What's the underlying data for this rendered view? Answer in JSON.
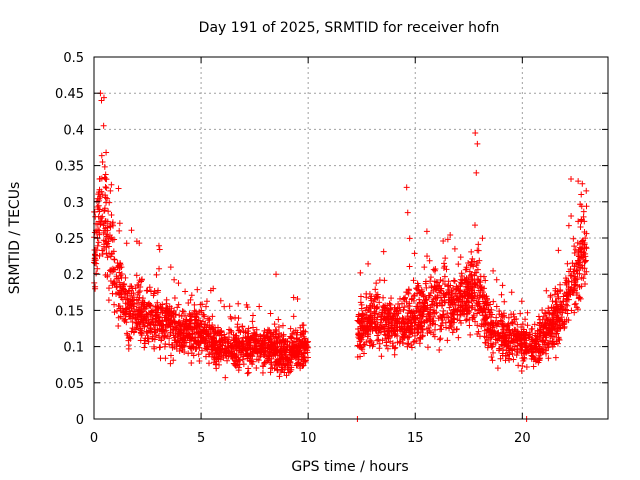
{
  "chart_data": {
    "type": "scatter",
    "title": "Day 191 of 2025, SRMTID for receiver hofn",
    "xlabel": "GPS time / hours",
    "ylabel": "SRMTID / TECUs",
    "xlim": [
      0,
      24
    ],
    "ylim": [
      0,
      0.5
    ],
    "xticks": [
      0,
      5,
      10,
      15,
      20
    ],
    "yticks": [
      0,
      0.05,
      0.1,
      0.15,
      0.2,
      0.25,
      0.3,
      0.35,
      0.4,
      0.45,
      0.5
    ],
    "ytick_labels": [
      "0",
      "0.05",
      "0.1",
      "0.15",
      "0.2",
      "0.25",
      "0.3",
      "0.35",
      "0.4",
      "0.45",
      "0.5"
    ],
    "xtick_labels": [
      "0",
      "5",
      "10",
      "15",
      "20"
    ],
    "grid": true,
    "marker": "+",
    "color": "#ff0000",
    "series": [
      {
        "name": "SRMTID",
        "segments": [
          {
            "x_start": 0.0,
            "x_end": 10.0,
            "count": 1600
          },
          {
            "x_start": 12.3,
            "x_end": 23.0,
            "count": 1700
          }
        ],
        "trend_points": [
          [
            0.0,
            0.22
          ],
          [
            0.3,
            0.3
          ],
          [
            0.6,
            0.26
          ],
          [
            1.0,
            0.2
          ],
          [
            1.5,
            0.15
          ],
          [
            2.0,
            0.15
          ],
          [
            3.0,
            0.14
          ],
          [
            4.0,
            0.12
          ],
          [
            5.0,
            0.12
          ],
          [
            6.0,
            0.1
          ],
          [
            7.0,
            0.1
          ],
          [
            8.0,
            0.1
          ],
          [
            9.0,
            0.09
          ],
          [
            10.0,
            0.1
          ],
          [
            12.3,
            0.12
          ],
          [
            13.0,
            0.14
          ],
          [
            14.0,
            0.13
          ],
          [
            15.0,
            0.14
          ],
          [
            16.0,
            0.16
          ],
          [
            17.0,
            0.16
          ],
          [
            17.8,
            0.18
          ],
          [
            18.5,
            0.13
          ],
          [
            19.5,
            0.11
          ],
          [
            20.5,
            0.1
          ],
          [
            21.5,
            0.13
          ],
          [
            22.5,
            0.2
          ],
          [
            23.0,
            0.24
          ]
        ],
        "notable_points": [
          [
            0.3,
            0.45
          ],
          [
            0.35,
            0.44
          ],
          [
            0.45,
            0.405
          ],
          [
            0.4,
            0.355
          ],
          [
            17.8,
            0.395
          ],
          [
            17.9,
            0.38
          ],
          [
            17.85,
            0.34
          ],
          [
            14.6,
            0.32
          ],
          [
            14.65,
            0.285
          ],
          [
            22.8,
            0.325
          ],
          [
            22.75,
            0.31
          ],
          [
            8.5,
            0.2
          ],
          [
            12.3,
            0.0
          ],
          [
            20.2,
            0.0
          ]
        ]
      }
    ]
  }
}
